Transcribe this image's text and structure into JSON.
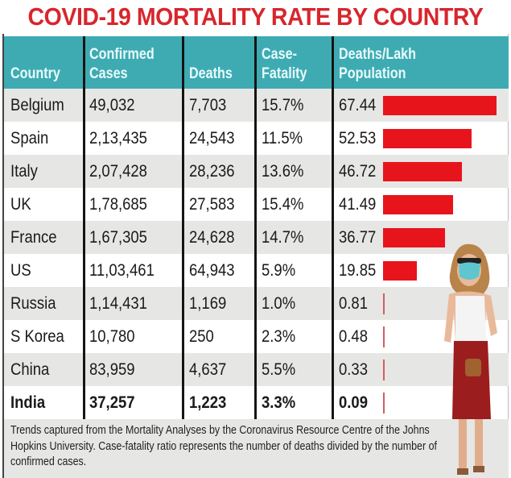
{
  "chart_data": {
    "type": "table",
    "title": "COVID-19 MORTALITY RATE BY COUNTRY",
    "columns": [
      "Country",
      "Confirmed Cases",
      "Deaths",
      "Case-Fatality",
      "Deaths/Lakh Population"
    ],
    "header_lines": [
      [
        "Country"
      ],
      [
        "Confirmed",
        "Cases"
      ],
      [
        "Deaths"
      ],
      [
        "Case-",
        "Fatality"
      ],
      [
        "Deaths/Lakh",
        "Population"
      ]
    ],
    "rows": [
      {
        "country": "Belgium",
        "cases": "49,032",
        "deaths": "7,703",
        "cfr": "15.7%",
        "per_lakh": "67.44",
        "value": 67.44
      },
      {
        "country": "Spain",
        "cases": "2,13,435",
        "deaths": "24,543",
        "cfr": "11.5%",
        "per_lakh": "52.53",
        "value": 52.53
      },
      {
        "country": "Italy",
        "cases": "2,07,428",
        "deaths": "28,236",
        "cfr": "13.6%",
        "per_lakh": "46.72",
        "value": 46.72
      },
      {
        "country": "UK",
        "cases": "1,78,685",
        "deaths": "27,583",
        "cfr": "15.4%",
        "per_lakh": "41.49",
        "value": 41.49
      },
      {
        "country": "France",
        "cases": "1,67,305",
        "deaths": "24,628",
        "cfr": "14.7%",
        "per_lakh": "36.77",
        "value": 36.77
      },
      {
        "country": "US",
        "cases": "11,03,461",
        "deaths": "64,943",
        "cfr": "5.9%",
        "per_lakh": "19.85",
        "value": 19.85
      },
      {
        "country": "Russia",
        "cases": "1,14,431",
        "deaths": "1,169",
        "cfr": "1.0%",
        "per_lakh": "0.81",
        "value": 0.81
      },
      {
        "country": "S Korea",
        "cases": "10,780",
        "deaths": "250",
        "cfr": "2.3%",
        "per_lakh": "0.48",
        "value": 0.48
      },
      {
        "country": "China",
        "cases": "83,959",
        "deaths": "4,637",
        "cfr": "5.5%",
        "per_lakh": "0.33",
        "value": 0.33
      },
      {
        "country": "India",
        "cases": "37,257",
        "deaths": "1,223",
        "cfr": "3.3%",
        "per_lakh": "0.09",
        "value": 0.09
      }
    ],
    "bar_max": 67.44,
    "bar_color": "#e8141c"
  },
  "footnote": "Trends captured from the Mortality Analyses by the Coronavirus Resource Centre of the Johns Hopkins University. Case-fatality ratio represents the number of deaths divided by the number of confirmed cases.",
  "colors": {
    "title": "#d8262d",
    "header": "#3eabb3"
  }
}
